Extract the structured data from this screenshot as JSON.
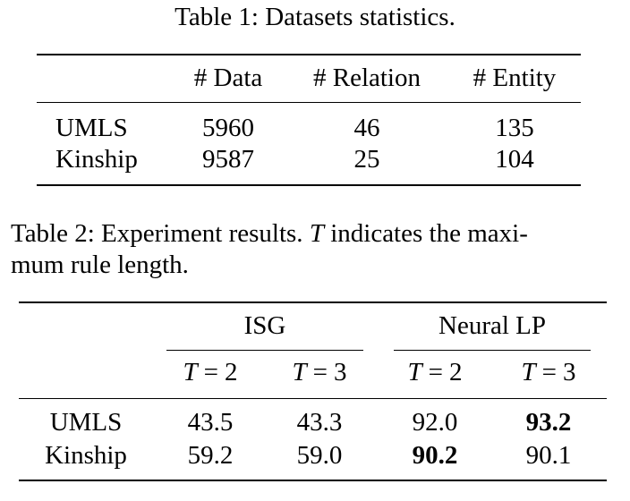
{
  "table1": {
    "caption": "Table 1: Datasets statistics.",
    "headers": [
      "# Data",
      "# Relation",
      "# Entity"
    ],
    "rows": [
      {
        "name": "UMLS",
        "values": [
          "5960",
          "46",
          "135"
        ]
      },
      {
        "name": "Kinship",
        "values": [
          "9587",
          "25",
          "104"
        ]
      }
    ]
  },
  "table2": {
    "caption_part1": "Table 2: Experiment results. ",
    "caption_var": "T",
    "caption_part2": " indicates the maxi-",
    "caption_line2": "mum rule length.",
    "groups": [
      "ISG",
      "Neural LP"
    ],
    "sub_headers": [
      {
        "var": "T",
        "op": "=",
        "val": "2"
      },
      {
        "var": "T",
        "op": "=",
        "val": "3"
      },
      {
        "var": "T",
        "op": "=",
        "val": "2"
      },
      {
        "var": "T",
        "op": "=",
        "val": "3"
      }
    ],
    "rows": [
      {
        "name": "UMLS",
        "values": [
          "43.5",
          "43.3",
          "92.0",
          "93.2"
        ],
        "bold_index": 3
      },
      {
        "name": "Kinship",
        "values": [
          "59.2",
          "59.0",
          "90.2",
          "90.1"
        ],
        "bold_index": 2
      }
    ]
  }
}
